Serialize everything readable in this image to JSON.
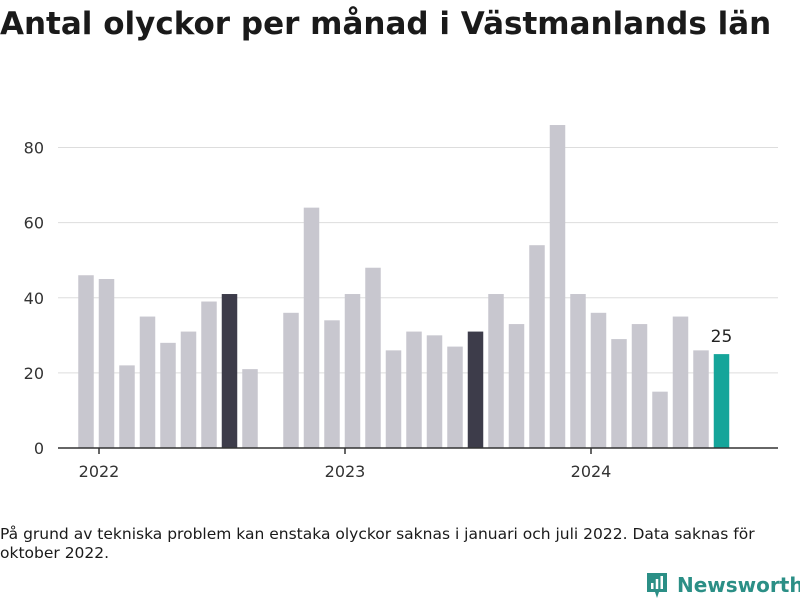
{
  "title": "Antal olyckor per månad i Västmanlands län",
  "note": "På grund av tekniska problem kan enstaka olyckor saknas i januari och juli 2022. Data saknas för oktober 2022.",
  "brand": {
    "name": "Newsworthy",
    "icon": "newsworthy-logo-icon"
  },
  "colors": {
    "bar": "#c8c7cf",
    "highlight": "#3d3c4a",
    "latest": "#15a59a",
    "grid": "#dddddd",
    "axis": "#333333",
    "brand": "#2b8f86"
  },
  "chart_data": {
    "type": "bar",
    "title": "Antal olyckor per månad i Västmanlands län",
    "xlabel": "",
    "ylabel": "",
    "ylim": [
      0,
      90
    ],
    "yticks": [
      0,
      20,
      40,
      60,
      80
    ],
    "xtick_labels": [
      "2022",
      "2023",
      "2024"
    ],
    "grid": true,
    "categories": [
      "2022-01",
      "2022-02",
      "2022-03",
      "2022-04",
      "2022-05",
      "2022-06",
      "2022-07",
      "2022-08",
      "2022-09",
      "2022-10",
      "2022-11",
      "2022-12",
      "2023-01",
      "2023-02",
      "2023-03",
      "2023-04",
      "2023-05",
      "2023-06",
      "2023-07",
      "2023-08",
      "2023-09",
      "2023-10",
      "2023-11",
      "2023-12",
      "2024-01",
      "2024-02",
      "2024-03",
      "2024-04",
      "2024-05",
      "2024-06",
      "2024-07",
      "2024-08"
    ],
    "values": [
      46,
      45,
      22,
      35,
      28,
      31,
      39,
      41,
      21,
      null,
      36,
      64,
      34,
      41,
      48,
      26,
      31,
      30,
      27,
      31,
      41,
      33,
      54,
      86,
      41,
      36,
      29,
      33,
      15,
      35,
      26,
      25
    ],
    "highlighted": [
      "2022-08",
      "2023-08"
    ],
    "latest": "2024-08",
    "data_labels": [
      {
        "category": "2024-08",
        "text": "25"
      }
    ]
  }
}
